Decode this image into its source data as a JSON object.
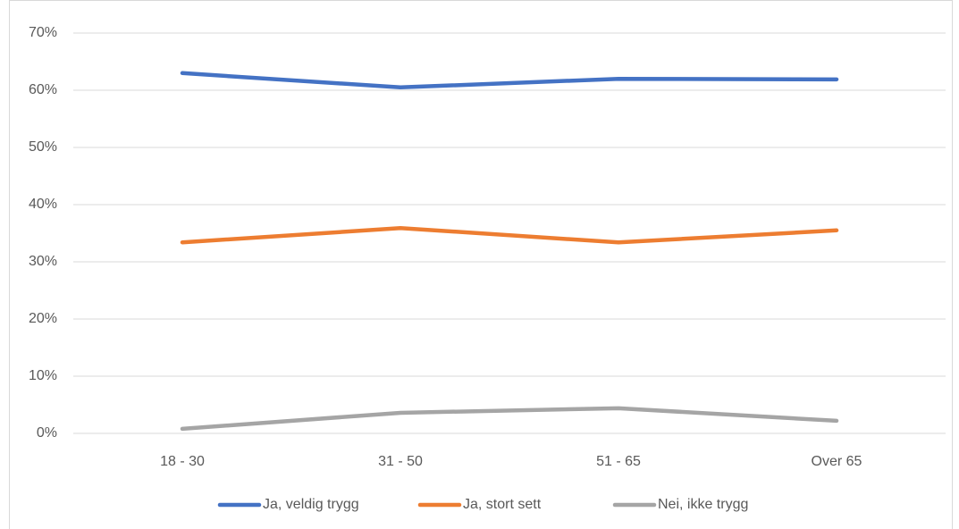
{
  "chart_data": {
    "type": "line",
    "categories": [
      "18 - 30",
      "31 - 50",
      "51 - 65",
      "Over 65"
    ],
    "series": [
      {
        "name": "Ja, veldig trygg",
        "color": "#4472c4",
        "values": [
          63.0,
          60.5,
          62.0,
          61.9
        ]
      },
      {
        "name": "Ja, stort sett",
        "color": "#ed7d31",
        "values": [
          33.4,
          35.9,
          33.4,
          35.5
        ]
      },
      {
        "name": "Nei, ikke trygg",
        "color": "#a5a5a5",
        "values": [
          0.8,
          3.6,
          4.4,
          2.2
        ]
      }
    ],
    "ylim": [
      0,
      70
    ],
    "yticks": [
      {
        "value": 0,
        "label": "0%"
      },
      {
        "value": 10,
        "label": "10%"
      },
      {
        "value": 20,
        "label": "20%"
      },
      {
        "value": 30,
        "label": "30%"
      },
      {
        "value": 40,
        "label": "40%"
      },
      {
        "value": 50,
        "label": "50%"
      },
      {
        "value": 60,
        "label": "60%"
      },
      {
        "value": 70,
        "label": "70%"
      }
    ],
    "grid": true,
    "legend": "bottom"
  }
}
